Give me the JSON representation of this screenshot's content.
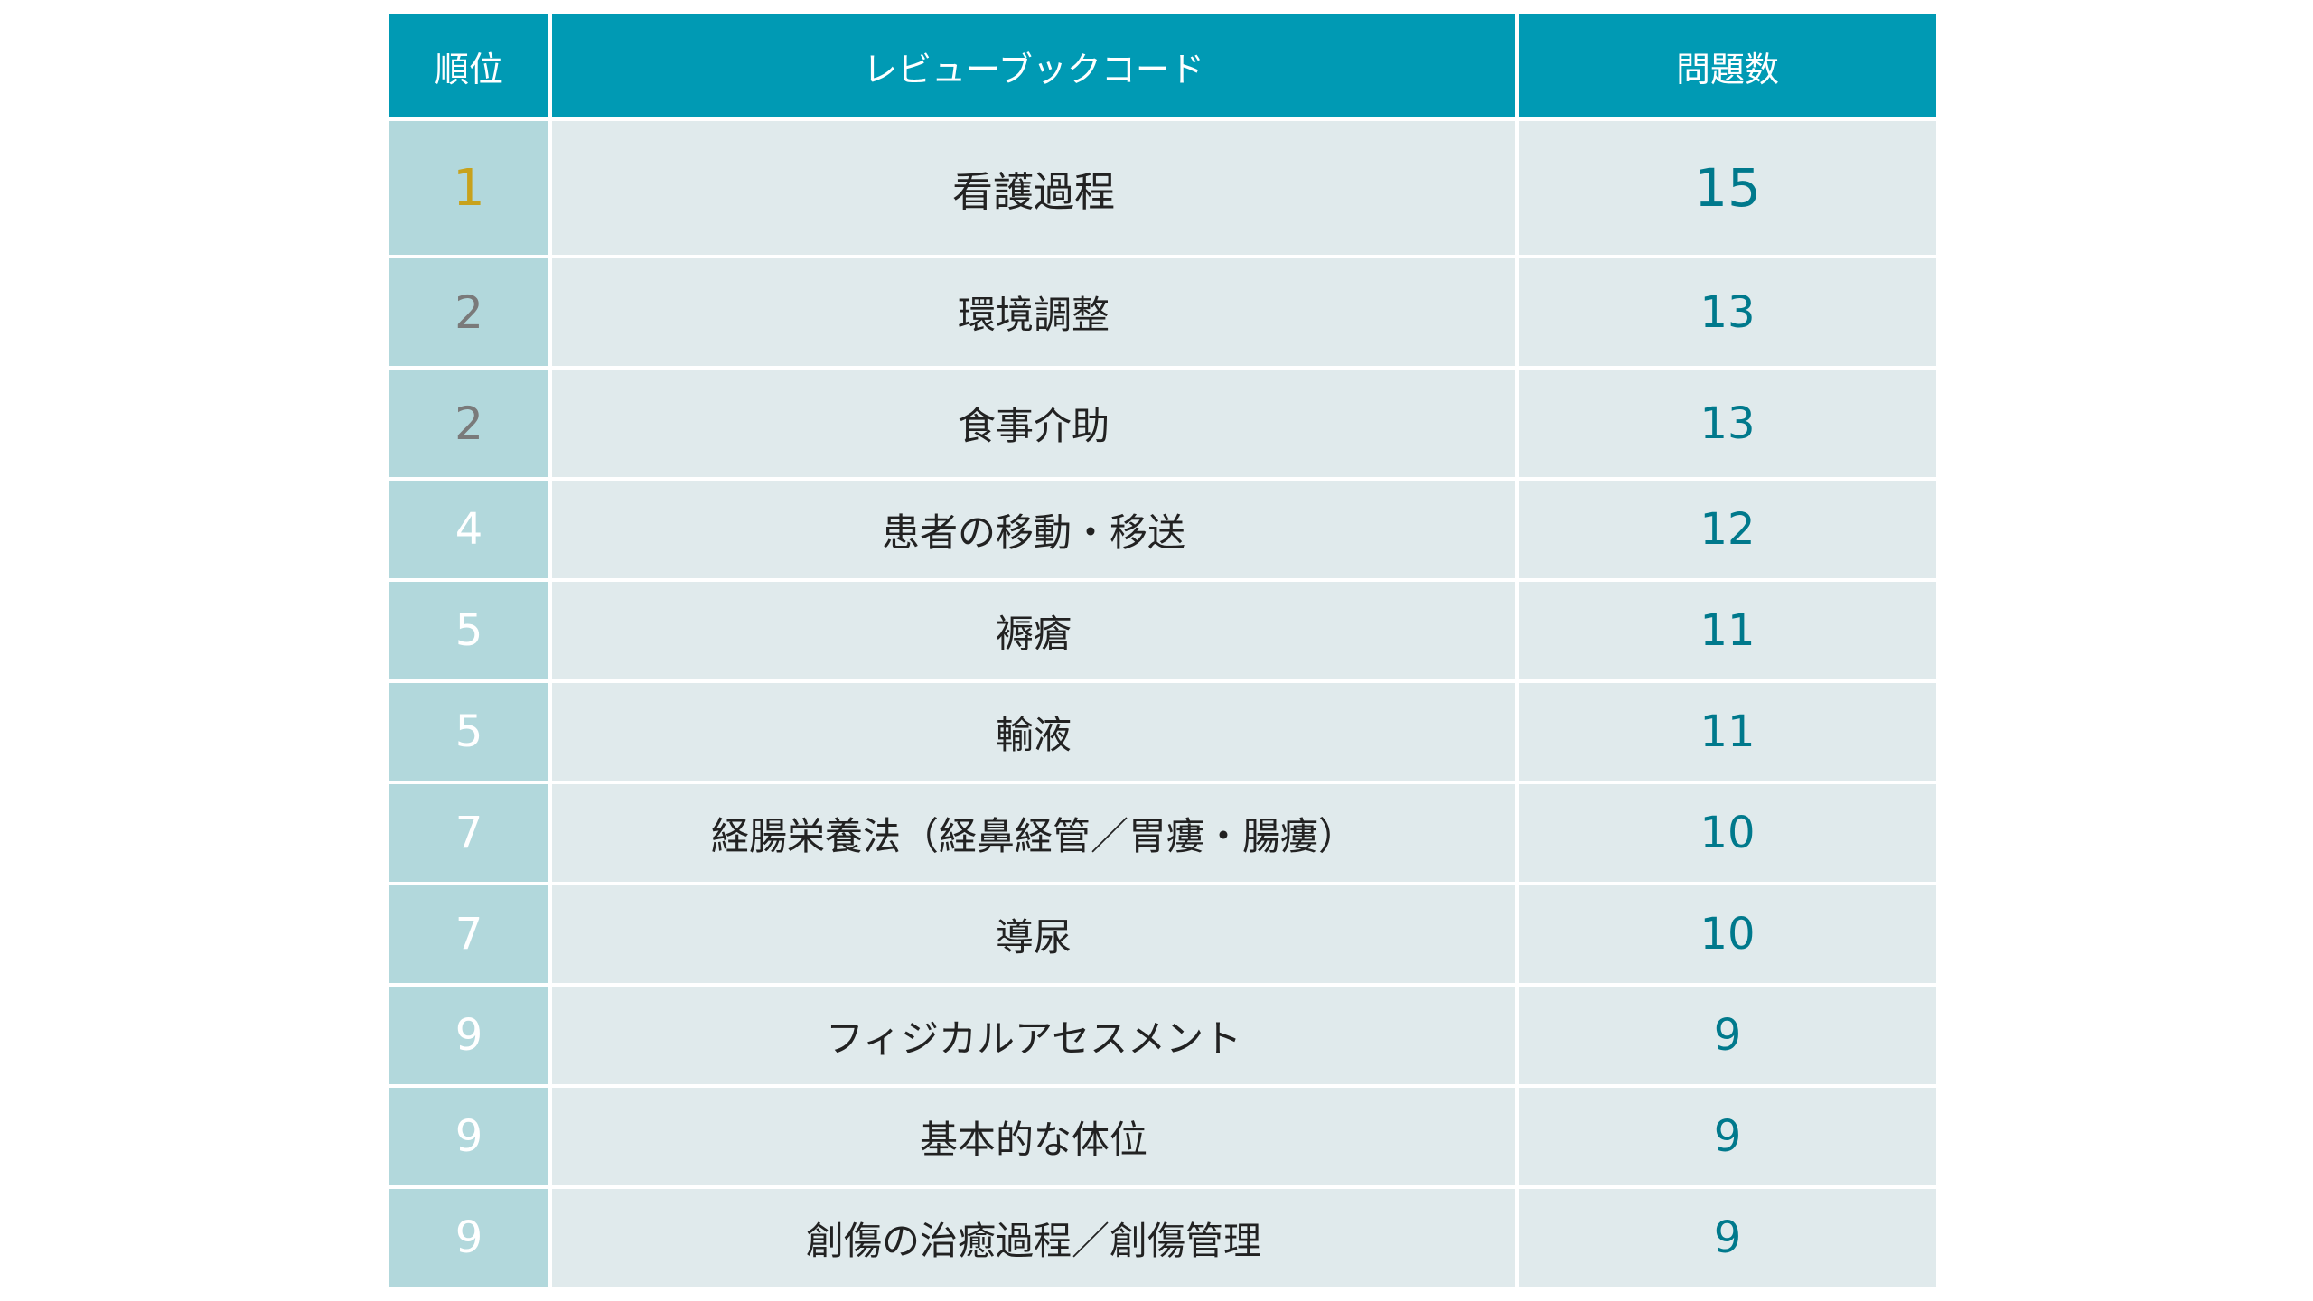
{
  "colors": {
    "header_bg": "#009ab4",
    "rank_bg": "#b2d8dc",
    "body_bg": "#e0eaec",
    "rank_gold": "#c8a21c",
    "rank_gray": "#7a7a7a",
    "rank_white": "#ffffff",
    "count_color": "#00798c"
  },
  "table": {
    "headers": {
      "rank": "順位",
      "code": "レビューブックコード",
      "count": "問題数"
    },
    "rows": [
      {
        "rank": "1",
        "name": "看護過程",
        "count": "15"
      },
      {
        "rank": "2",
        "name": "環境調整",
        "count": "13"
      },
      {
        "rank": "2",
        "name": "食事介助",
        "count": "13"
      },
      {
        "rank": "4",
        "name": "患者の移動・移送",
        "count": "12"
      },
      {
        "rank": "5",
        "name": "褥瘡",
        "count": "11"
      },
      {
        "rank": "5",
        "name": "輸液",
        "count": "11"
      },
      {
        "rank": "7",
        "name": "経腸栄養法（経鼻経管／胃瘻・腸瘻）",
        "count": "10"
      },
      {
        "rank": "7",
        "name": "導尿",
        "count": "10"
      },
      {
        "rank": "9",
        "name": "フィジカルアセスメント",
        "count": "9"
      },
      {
        "rank": "9",
        "name": "基本的な体位",
        "count": "9"
      },
      {
        "rank": "9",
        "name": "創傷の治癒過程／創傷管理",
        "count": "9"
      }
    ]
  }
}
